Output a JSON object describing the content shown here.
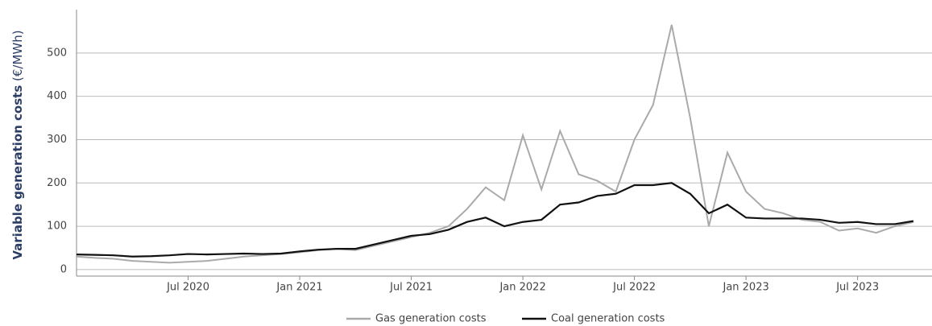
{
  "chart_data": {
    "type": "line",
    "y_label_bold": "Variable generation costs",
    "y_label_unit": "(€/MWh)",
    "x": [
      "2020-01",
      "2020-02",
      "2020-03",
      "2020-04",
      "2020-05",
      "2020-06",
      "2020-07",
      "2020-08",
      "2020-09",
      "2020-10",
      "2020-11",
      "2020-12",
      "2021-01",
      "2021-02",
      "2021-03",
      "2021-04",
      "2021-05",
      "2021-06",
      "2021-07",
      "2021-08",
      "2021-09",
      "2021-10",
      "2021-11",
      "2021-12",
      "2022-01",
      "2022-02",
      "2022-03",
      "2022-04",
      "2022-05",
      "2022-06",
      "2022-07",
      "2022-08",
      "2022-09",
      "2022-10",
      "2022-11",
      "2022-12",
      "2023-01",
      "2023-02",
      "2023-03",
      "2023-04",
      "2023-05",
      "2023-06",
      "2023-07",
      "2023-08",
      "2023-09",
      "2023-10"
    ],
    "series": [
      {
        "name": "Gas generation costs",
        "color": "#aaaaaa",
        "values": [
          30,
          27,
          25,
          20,
          18,
          16,
          18,
          20,
          25,
          30,
          33,
          36,
          40,
          45,
          48,
          45,
          55,
          65,
          75,
          85,
          100,
          140,
          190,
          160,
          310,
          185,
          320,
          220,
          205,
          180,
          300,
          380,
          565,
          350,
          100,
          270,
          180,
          140,
          130,
          115,
          110,
          90,
          95,
          85,
          100,
          110
        ]
      },
      {
        "name": "Coal generation costs",
        "color": "#111111",
        "values": [
          35,
          34,
          33,
          30,
          31,
          33,
          36,
          35,
          36,
          37,
          36,
          37,
          42,
          46,
          48,
          48,
          58,
          68,
          78,
          82,
          92,
          110,
          120,
          100,
          110,
          115,
          150,
          155,
          170,
          175,
          195,
          195,
          200,
          175,
          130,
          150,
          120,
          118,
          118,
          118,
          115,
          108,
          110,
          105,
          105,
          112
        ]
      }
    ],
    "xlim": [
      "2020-01",
      "2023-11"
    ],
    "xticks": [
      {
        "value": "2020-07",
        "label": "Jul 2020"
      },
      {
        "value": "2021-01",
        "label": "Jan 2021"
      },
      {
        "value": "2021-07",
        "label": "Jul 2021"
      },
      {
        "value": "2022-01",
        "label": "Jan 2022"
      },
      {
        "value": "2022-07",
        "label": "Jul 2022"
      },
      {
        "value": "2023-01",
        "label": "Jan 2023"
      },
      {
        "value": "2023-07",
        "label": "Jul 2023"
      }
    ],
    "ylim": [
      -15,
      600
    ],
    "yticks": [
      0,
      100,
      200,
      300,
      400,
      500
    ],
    "grid": true,
    "legend": "bottom"
  }
}
